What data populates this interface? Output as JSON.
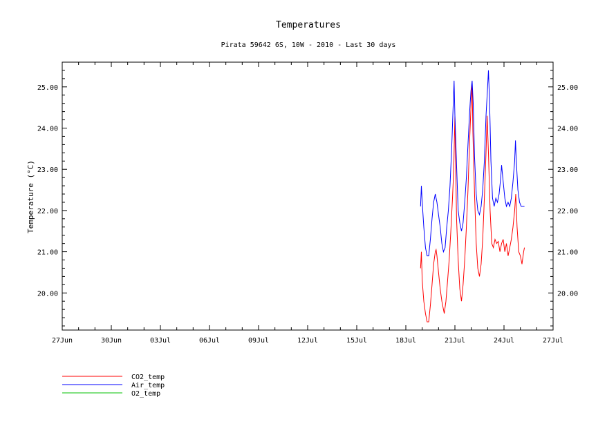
{
  "chart_data": {
    "type": "line",
    "title": "Temperatures",
    "subtitle": "Pirata 59642 6S, 10W - 2010 - Last 30 days",
    "xlabel": "",
    "ylabel": "Temperature (°C)",
    "xlim": [
      0,
      30
    ],
    "ylim": [
      19.1,
      25.6
    ],
    "x_ticks": [
      {
        "x": 0,
        "label": "27Jun"
      },
      {
        "x": 3,
        "label": "30Jun"
      },
      {
        "x": 6,
        "label": "03Jul"
      },
      {
        "x": 9,
        "label": "06Jul"
      },
      {
        "x": 12,
        "label": "09Jul"
      },
      {
        "x": 15,
        "label": "12Jul"
      },
      {
        "x": 18,
        "label": "15Jul"
      },
      {
        "x": 21,
        "label": "18Jul"
      },
      {
        "x": 24,
        "label": "21Jul"
      },
      {
        "x": 27,
        "label": "24Jul"
      },
      {
        "x": 30,
        "label": "27Jul"
      }
    ],
    "y_ticks": [
      {
        "y": 20,
        "label": "20.00"
      },
      {
        "y": 21,
        "label": "21.00"
      },
      {
        "y": 22,
        "label": "22.00"
      },
      {
        "y": 23,
        "label": "23.00"
      },
      {
        "y": 24,
        "label": "24.00"
      },
      {
        "y": 25,
        "label": "25.00"
      }
    ],
    "grid": false,
    "legend_position": "bottom-left",
    "series": [
      {
        "name": "CO2_temp",
        "color": "#ff0000",
        "points": [
          [
            21.9,
            20.6
          ],
          [
            21.95,
            21.0
          ],
          [
            22.0,
            20.3
          ],
          [
            22.1,
            19.8
          ],
          [
            22.2,
            19.5
          ],
          [
            22.3,
            19.3
          ],
          [
            22.4,
            19.3
          ],
          [
            22.5,
            19.7
          ],
          [
            22.6,
            20.2
          ],
          [
            22.7,
            20.7
          ],
          [
            22.8,
            21.0
          ],
          [
            22.85,
            21.05
          ],
          [
            22.9,
            20.9
          ],
          [
            23.0,
            20.5
          ],
          [
            23.1,
            20.1
          ],
          [
            23.2,
            19.8
          ],
          [
            23.3,
            19.6
          ],
          [
            23.35,
            19.5
          ],
          [
            23.45,
            19.8
          ],
          [
            23.55,
            20.3
          ],
          [
            23.65,
            20.8
          ],
          [
            23.75,
            21.5
          ],
          [
            23.85,
            22.3
          ],
          [
            23.93,
            23.0
          ],
          [
            24.0,
            24.3
          ],
          [
            24.05,
            23.0
          ],
          [
            24.1,
            21.8
          ],
          [
            24.2,
            20.8
          ],
          [
            24.3,
            20.1
          ],
          [
            24.4,
            19.8
          ],
          [
            24.5,
            20.2
          ],
          [
            24.6,
            20.8
          ],
          [
            24.7,
            21.6
          ],
          [
            24.8,
            22.5
          ],
          [
            24.9,
            23.7
          ],
          [
            24.98,
            24.5
          ],
          [
            25.05,
            25.1
          ],
          [
            25.1,
            23.9
          ],
          [
            25.2,
            22.4
          ],
          [
            25.3,
            21.2
          ],
          [
            25.4,
            20.6
          ],
          [
            25.5,
            20.4
          ],
          [
            25.6,
            20.7
          ],
          [
            25.7,
            21.3
          ],
          [
            25.8,
            22.3
          ],
          [
            25.9,
            23.4
          ],
          [
            25.97,
            24.3
          ],
          [
            26.05,
            23.4
          ],
          [
            26.15,
            22.0
          ],
          [
            26.25,
            21.2
          ],
          [
            26.35,
            21.1
          ],
          [
            26.45,
            21.3
          ],
          [
            26.55,
            21.2
          ],
          [
            26.65,
            21.25
          ],
          [
            26.75,
            21.0
          ],
          [
            26.85,
            21.2
          ],
          [
            26.95,
            21.3
          ],
          [
            27.05,
            21.0
          ],
          [
            27.15,
            21.2
          ],
          [
            27.25,
            20.9
          ],
          [
            27.35,
            21.1
          ],
          [
            27.45,
            21.3
          ],
          [
            27.55,
            21.6
          ],
          [
            27.65,
            22.0
          ],
          [
            27.72,
            22.4
          ],
          [
            27.8,
            21.6
          ],
          [
            27.9,
            21.0
          ],
          [
            28.0,
            20.9
          ],
          [
            28.1,
            20.7
          ],
          [
            28.2,
            21.0
          ],
          [
            28.25,
            21.1
          ]
        ]
      },
      {
        "name": "Air_temp",
        "color": "#0000ff",
        "points": [
          [
            21.9,
            22.1
          ],
          [
            21.95,
            22.6
          ],
          [
            22.0,
            22.2
          ],
          [
            22.1,
            21.6
          ],
          [
            22.2,
            21.1
          ],
          [
            22.3,
            20.9
          ],
          [
            22.4,
            20.9
          ],
          [
            22.5,
            21.3
          ],
          [
            22.6,
            21.8
          ],
          [
            22.7,
            22.2
          ],
          [
            22.8,
            22.4
          ],
          [
            22.9,
            22.2
          ],
          [
            23.0,
            21.9
          ],
          [
            23.1,
            21.6
          ],
          [
            23.2,
            21.2
          ],
          [
            23.3,
            21.0
          ],
          [
            23.4,
            21.1
          ],
          [
            23.5,
            21.6
          ],
          [
            23.6,
            22.0
          ],
          [
            23.7,
            22.6
          ],
          [
            23.8,
            23.5
          ],
          [
            23.9,
            24.6
          ],
          [
            23.95,
            25.15
          ],
          [
            24.0,
            24.3
          ],
          [
            24.1,
            23.1
          ],
          [
            24.2,
            22.0
          ],
          [
            24.3,
            21.7
          ],
          [
            24.4,
            21.5
          ],
          [
            24.5,
            21.7
          ],
          [
            24.6,
            22.2
          ],
          [
            24.7,
            22.8
          ],
          [
            24.8,
            23.6
          ],
          [
            24.9,
            24.4
          ],
          [
            24.98,
            24.9
          ],
          [
            25.05,
            25.15
          ],
          [
            25.12,
            24.6
          ],
          [
            25.2,
            23.3
          ],
          [
            25.3,
            22.4
          ],
          [
            25.4,
            22.0
          ],
          [
            25.5,
            21.9
          ],
          [
            25.6,
            22.1
          ],
          [
            25.7,
            22.5
          ],
          [
            25.8,
            23.2
          ],
          [
            25.9,
            24.3
          ],
          [
            26.0,
            25.0
          ],
          [
            26.05,
            25.4
          ],
          [
            26.12,
            24.6
          ],
          [
            26.2,
            23.2
          ],
          [
            26.3,
            22.3
          ],
          [
            26.4,
            22.1
          ],
          [
            26.5,
            22.3
          ],
          [
            26.6,
            22.2
          ],
          [
            26.7,
            22.4
          ],
          [
            26.8,
            22.8
          ],
          [
            26.85,
            23.1
          ],
          [
            26.95,
            22.7
          ],
          [
            27.05,
            22.3
          ],
          [
            27.15,
            22.1
          ],
          [
            27.25,
            22.2
          ],
          [
            27.35,
            22.1
          ],
          [
            27.45,
            22.3
          ],
          [
            27.55,
            22.7
          ],
          [
            27.65,
            23.2
          ],
          [
            27.7,
            23.7
          ],
          [
            27.75,
            23.2
          ],
          [
            27.85,
            22.5
          ],
          [
            27.95,
            22.2
          ],
          [
            28.05,
            22.1
          ],
          [
            28.15,
            22.1
          ],
          [
            28.25,
            22.1
          ]
        ]
      },
      {
        "name": "O2_temp",
        "color": "#00c000",
        "points": []
      }
    ]
  }
}
